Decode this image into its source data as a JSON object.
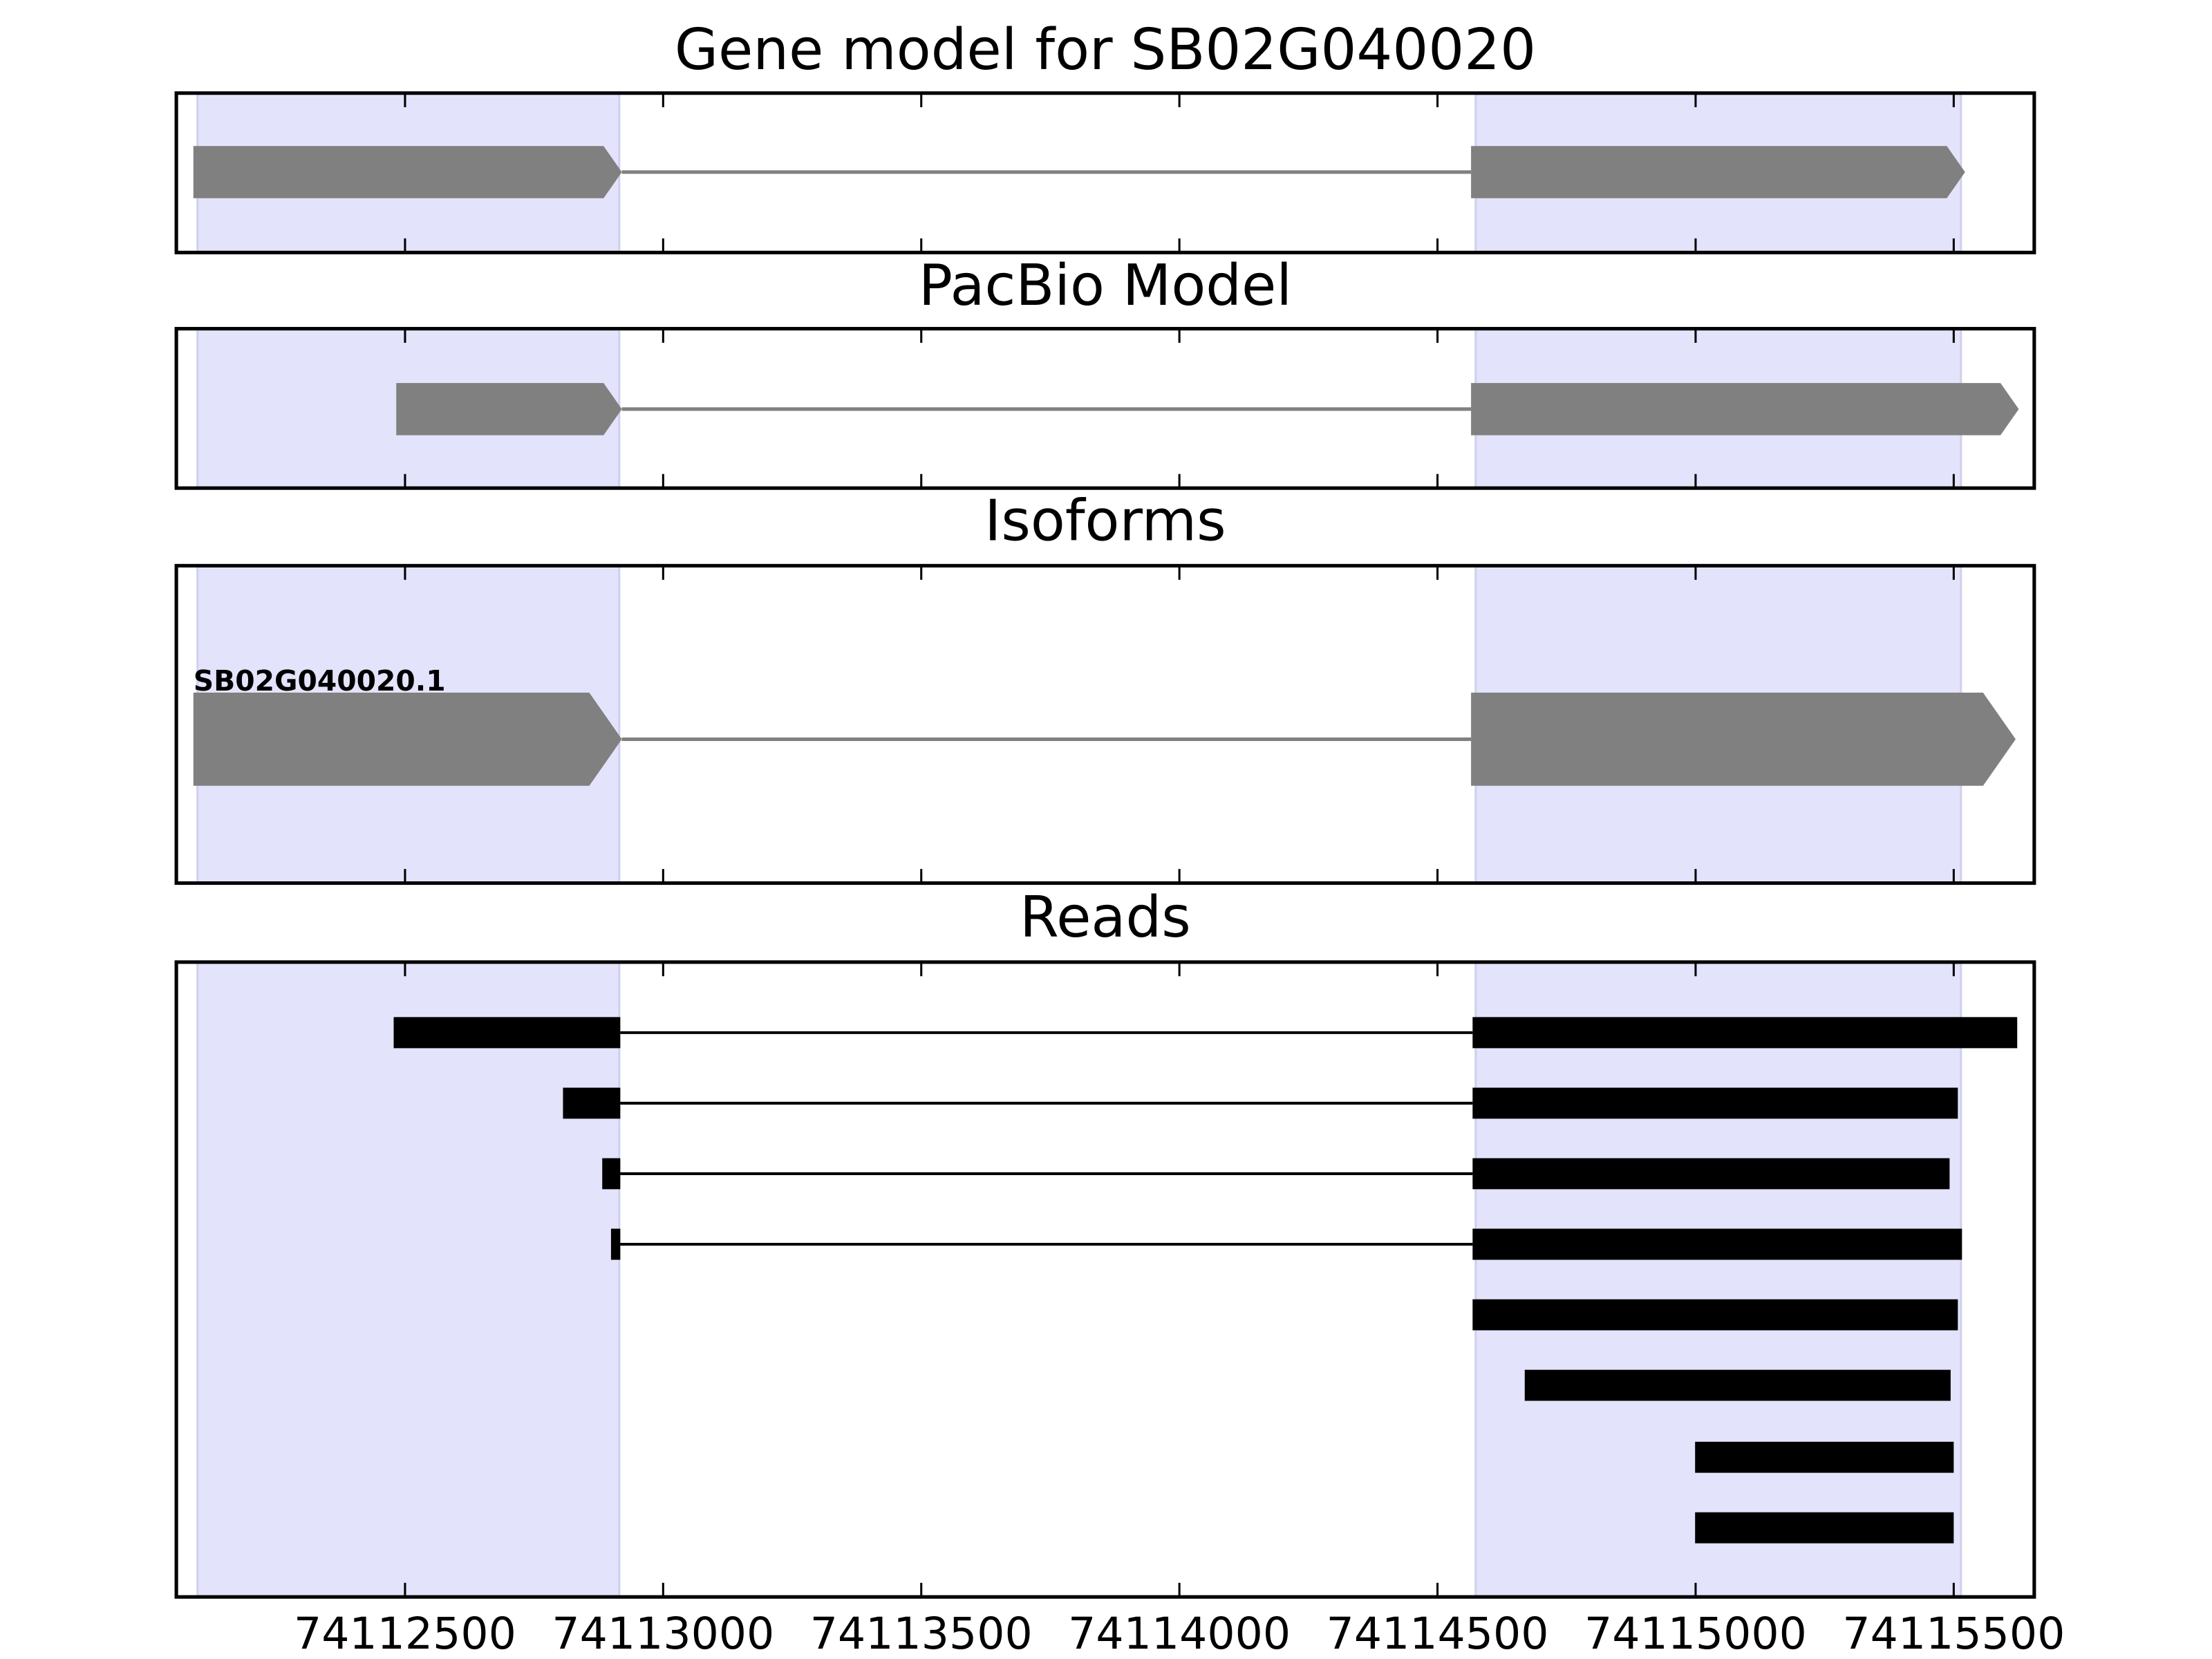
{
  "chart_data": [
    {
      "type": "gene-track",
      "title": "Gene model for SB02G040020",
      "xlim": [
        74112057,
        74115656
      ],
      "xticks": [
        74112500,
        74113000,
        74113500,
        74114000,
        74114500,
        74115000,
        74115500
      ],
      "highlight": [
        [
          74112098,
          74112915
        ],
        [
          74114574,
          74115514
        ]
      ],
      "highlight_color": "#e3e3fb",
      "color": "#808080",
      "arrows": true,
      "transcripts": [
        {
          "exons": [
            [
              74112090,
              74112920
            ],
            [
              74114565,
              74115522
            ]
          ]
        }
      ]
    },
    {
      "type": "gene-track",
      "title": "PacBio Model",
      "xlim": [
        74112057,
        74115656
      ],
      "xticks": [
        74112500,
        74113000,
        74113500,
        74114000,
        74114500,
        74115000,
        74115500
      ],
      "highlight": [
        [
          74112098,
          74112915
        ],
        [
          74114574,
          74115514
        ]
      ],
      "highlight_color": "#e3e3fb",
      "color": "#808080",
      "arrows": true,
      "transcripts": [
        {
          "exons": [
            [
              74112483,
              74112920
            ],
            [
              74114565,
              74115626
            ]
          ]
        }
      ]
    },
    {
      "type": "gene-track",
      "title": "Isoforms",
      "xlim": [
        74112057,
        74115656
      ],
      "xticks": [
        74112500,
        74113000,
        74113500,
        74114000,
        74114500,
        74115000,
        74115500
      ],
      "highlight": [
        [
          74112098,
          74112915
        ],
        [
          74114574,
          74115514
        ]
      ],
      "highlight_color": "#e3e3fb",
      "color": "#808080",
      "arrows": true,
      "transcripts": [
        {
          "name": "SB02G040020.1",
          "exons": [
            [
              74112090,
              74112920
            ],
            [
              74114565,
              74115620
            ]
          ]
        }
      ]
    },
    {
      "type": "gene-track",
      "title": "Reads",
      "xlim": [
        74112057,
        74115656
      ],
      "xticks": [
        74112500,
        74113000,
        74113500,
        74114000,
        74114500,
        74115000,
        74115500
      ],
      "highlight": [
        [
          74112098,
          74112915
        ],
        [
          74114574,
          74115514
        ]
      ],
      "highlight_color": "#e3e3fb",
      "color": "#000000",
      "arrows": false,
      "transcripts": [
        {
          "exons": [
            [
              74112478,
              74112917
            ],
            [
              74114568,
              74115623
            ]
          ]
        },
        {
          "exons": [
            [
              74112806,
              74112917
            ],
            [
              74114568,
              74115508
            ]
          ]
        },
        {
          "exons": [
            [
              74112882,
              74112917
            ],
            [
              74114568,
              74115492
            ]
          ]
        },
        {
          "exons": [
            [
              74112899,
              74112917
            ],
            [
              74114568,
              74115516
            ]
          ]
        },
        {
          "exons": [
            [
              74114568,
              74115508
            ]
          ]
        },
        {
          "exons": [
            [
              74114669,
              74115494
            ]
          ]
        },
        {
          "exons": [
            [
              74114999,
              74115500
            ]
          ]
        },
        {
          "exons": [
            [
              74114999,
              74115500
            ]
          ]
        }
      ]
    }
  ]
}
